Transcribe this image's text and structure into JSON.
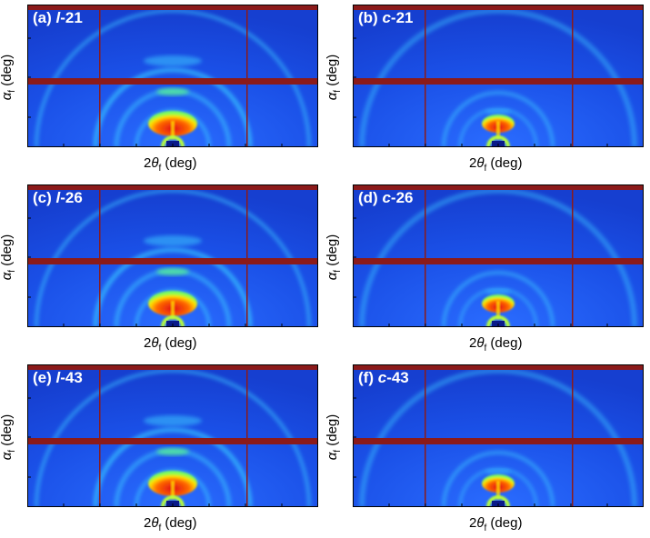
{
  "figure": {
    "panels": [
      {
        "id": "a",
        "prefix": "(a) ",
        "sample": "l",
        "suffix": "-21",
        "variant": "l"
      },
      {
        "id": "b",
        "prefix": "(b) ",
        "sample": "c",
        "suffix": "-21",
        "variant": "c"
      },
      {
        "id": "c",
        "prefix": "(c) ",
        "sample": "l",
        "suffix": "-26",
        "variant": "l"
      },
      {
        "id": "d",
        "prefix": "(d) ",
        "sample": "c",
        "suffix": "-26",
        "variant": "c"
      },
      {
        "id": "e",
        "prefix": "(e) ",
        "sample": "l",
        "suffix": "-43",
        "variant": "l"
      },
      {
        "id": "f",
        "prefix": "(f) ",
        "sample": "c",
        "suffix": "-43",
        "variant": "c"
      }
    ],
    "xlabel": {
      "pre": "2",
      "theta": "θ",
      "sub": "f",
      "post": " (deg)"
    },
    "ylabel": {
      "alpha": "α",
      "sub": "f",
      "post": " (deg)"
    },
    "colors": {
      "background_blue": "#1a4fe6",
      "beam_stop_red": "#8b1a1a",
      "ring_cyan": "#39c6ff",
      "hot_red": "#e01010",
      "hot_yellow": "#ffe000",
      "title_white": "#ffffff"
    }
  }
}
